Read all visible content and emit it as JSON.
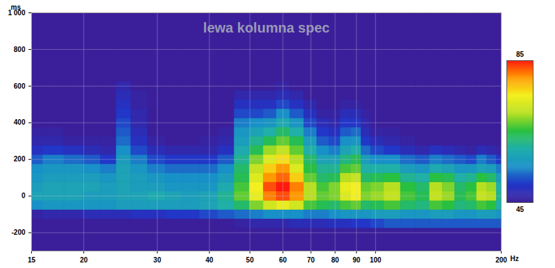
{
  "chart_data": {
    "type": "heatmap",
    "title": "lewa kolumna spec",
    "x_label": "Hz",
    "y_label": "ms",
    "log": "x",
    "grid": true,
    "xlim": [
      15,
      200
    ],
    "xticks": [
      15,
      20,
      30,
      40,
      50,
      60,
      70,
      80,
      90,
      100,
      200
    ],
    "ylim": [
      -300,
      1000
    ],
    "yticks": [
      -200,
      0,
      200,
      400,
      600,
      800,
      {
        "value": 1000,
        "label": "1 000"
      }
    ],
    "zlim": [
      45,
      85
    ],
    "zticks": [
      45,
      85
    ],
    "x": [
      15,
      17,
      19,
      21,
      23,
      25,
      27,
      30,
      33,
      36,
      40,
      44,
      48,
      52,
      56,
      60,
      65,
      70,
      75,
      80,
      85,
      90,
      95,
      100,
      110,
      120,
      130,
      140,
      150,
      160,
      170,
      180,
      190,
      200
    ],
    "y": [
      -300,
      -250,
      -200,
      -150,
      -100,
      -50,
      0,
      50,
      100,
      150,
      200,
      250,
      300,
      350,
      400,
      450,
      500,
      550,
      600,
      650,
      700
    ],
    "values": [
      [
        45,
        45,
        45,
        45,
        45,
        45,
        45,
        45,
        45,
        45,
        45,
        45,
        45,
        45,
        45,
        45,
        45,
        45,
        45,
        45,
        45,
        45,
        45,
        45,
        45,
        45,
        45,
        45,
        45,
        45,
        45,
        45,
        45,
        45
      ],
      [
        45,
        45,
        45,
        45,
        45,
        45,
        45,
        45,
        45,
        45,
        45,
        45,
        45,
        45,
        45,
        45,
        45,
        45,
        45,
        45,
        45,
        45,
        45,
        45,
        45,
        45,
        45,
        45,
        45,
        45,
        45,
        45,
        45,
        45
      ],
      [
        45,
        45,
        45,
        45,
        45,
        45,
        45,
        45,
        45,
        45,
        45,
        45,
        45,
        45,
        45,
        45,
        45,
        45,
        45,
        45,
        45,
        45,
        45,
        45,
        45,
        45,
        45,
        45,
        45,
        45,
        45,
        45,
        45,
        45
      ],
      [
        45,
        45,
        45,
        45,
        45,
        45,
        45,
        45,
        45,
        45,
        45,
        45,
        46,
        47,
        47,
        47,
        48,
        48,
        48,
        49,
        49,
        50,
        50,
        51,
        52,
        52,
        52,
        52,
        52,
        52,
        52,
        52,
        52,
        52
      ],
      [
        46,
        47,
        47,
        48,
        48,
        48,
        49,
        49,
        50,
        50,
        51,
        52,
        53,
        54,
        55,
        55,
        55,
        54,
        54,
        55,
        56,
        56,
        56,
        57,
        57,
        56,
        56,
        57,
        57,
        56,
        56,
        57,
        57,
        56
      ],
      [
        55,
        56,
        56,
        56,
        56,
        57,
        57,
        57,
        57,
        57,
        58,
        60,
        63,
        68,
        72,
        74,
        72,
        66,
        64,
        63,
        66,
        67,
        63,
        64,
        66,
        63,
        62,
        66,
        65,
        62,
        63,
        66,
        65,
        60
      ],
      [
        58,
        58,
        58,
        57,
        57,
        58,
        58,
        59,
        58,
        57,
        58,
        61,
        67,
        74,
        81,
        83,
        80,
        70,
        67,
        68,
        73,
        75,
        68,
        69,
        71,
        66,
        64,
        71,
        69,
        64,
        66,
        71,
        70,
        61
      ],
      [
        57,
        58,
        58,
        58,
        57,
        58,
        57,
        57,
        56,
        56,
        56,
        59,
        66,
        75,
        83,
        85,
        81,
        70,
        66,
        68,
        74,
        75,
        67,
        68,
        70,
        65,
        63,
        70,
        68,
        63,
        65,
        70,
        69,
        60
      ],
      [
        56,
        57,
        57,
        57,
        56,
        58,
        57,
        56,
        55,
        55,
        55,
        57,
        64,
        73,
        80,
        82,
        77,
        67,
        63,
        64,
        70,
        71,
        63,
        64,
        65,
        61,
        60,
        65,
        64,
        60,
        61,
        65,
        63,
        57
      ],
      [
        55,
        56,
        56,
        55,
        54,
        58,
        56,
        54,
        53,
        53,
        53,
        55,
        63,
        71,
        77,
        80,
        73,
        65,
        61,
        61,
        66,
        67,
        60,
        60,
        60,
        57,
        56,
        59,
        58,
        56,
        56,
        58,
        57,
        54
      ],
      [
        52,
        54,
        53,
        52,
        50,
        57,
        54,
        51,
        50,
        50,
        50,
        52,
        61,
        68,
        73,
        76,
        70,
        63,
        58,
        58,
        62,
        64,
        57,
        55,
        55,
        53,
        52,
        54,
        53,
        52,
        51,
        54,
        52,
        50
      ],
      [
        49,
        50,
        49,
        48,
        47,
        55,
        51,
        48,
        47,
        47,
        47,
        49,
        59,
        64,
        69,
        71,
        67,
        60,
        55,
        54,
        58,
        60,
        53,
        51,
        50,
        48,
        47,
        49,
        48,
        47,
        46,
        48,
        47,
        46
      ],
      [
        47,
        47,
        46,
        46,
        46,
        53,
        49,
        46,
        45,
        45,
        46,
        47,
        57,
        61,
        64,
        67,
        64,
        57,
        52,
        51,
        55,
        56,
        50,
        48,
        47,
        46,
        45,
        45,
        45,
        45,
        45,
        45,
        45,
        45
      ],
      [
        46,
        46,
        45,
        45,
        45,
        52,
        48,
        45,
        45,
        45,
        45,
        46,
        56,
        58,
        60,
        63,
        60,
        54,
        50,
        49,
        52,
        53,
        48,
        46,
        46,
        45,
        45,
        45,
        45,
        45,
        45,
        45,
        45,
        45
      ],
      [
        45,
        45,
        45,
        45,
        45,
        51,
        47,
        45,
        45,
        45,
        45,
        45,
        54,
        55,
        56,
        59,
        56,
        51,
        48,
        47,
        50,
        50,
        47,
        45,
        45,
        45,
        45,
        45,
        45,
        45,
        45,
        45,
        45,
        45
      ],
      [
        45,
        45,
        45,
        45,
        45,
        50,
        47,
        45,
        45,
        45,
        45,
        45,
        51,
        51,
        52,
        55,
        52,
        49,
        46,
        46,
        48,
        48,
        46,
        45,
        45,
        45,
        45,
        45,
        45,
        45,
        45,
        45,
        45,
        45
      ],
      [
        45,
        45,
        45,
        45,
        45,
        49,
        46,
        45,
        45,
        45,
        45,
        45,
        49,
        49,
        49,
        51,
        49,
        47,
        45,
        45,
        46,
        46,
        45,
        45,
        45,
        45,
        45,
        45,
        45,
        45,
        45,
        45,
        45,
        45
      ],
      [
        45,
        45,
        45,
        45,
        45,
        48,
        46,
        45,
        45,
        45,
        45,
        45,
        47,
        47,
        47,
        48,
        47,
        45,
        45,
        45,
        45,
        45,
        45,
        45,
        45,
        45,
        45,
        45,
        45,
        45,
        45,
        45,
        45,
        45
      ],
      [
        45,
        45,
        45,
        45,
        45,
        47,
        45,
        45,
        45,
        45,
        45,
        45,
        45,
        45,
        45,
        46,
        45,
        45,
        45,
        45,
        45,
        45,
        45,
        45,
        45,
        45,
        45,
        45,
        45,
        45,
        45,
        45,
        45,
        45
      ],
      [
        45,
        45,
        45,
        45,
        45,
        45,
        45,
        45,
        45,
        45,
        45,
        45,
        45,
        45,
        45,
        45,
        45,
        45,
        45,
        45,
        45,
        45,
        45,
        45,
        45,
        45,
        45,
        45,
        45,
        45,
        45,
        45,
        45,
        45
      ],
      [
        45,
        45,
        45,
        45,
        45,
        45,
        45,
        45,
        45,
        45,
        45,
        45,
        45,
        45,
        45,
        45,
        45,
        45,
        45,
        45,
        45,
        45,
        45,
        45,
        45,
        45,
        45,
        45,
        45,
        45,
        45,
        45,
        45,
        45
      ]
    ]
  }
}
